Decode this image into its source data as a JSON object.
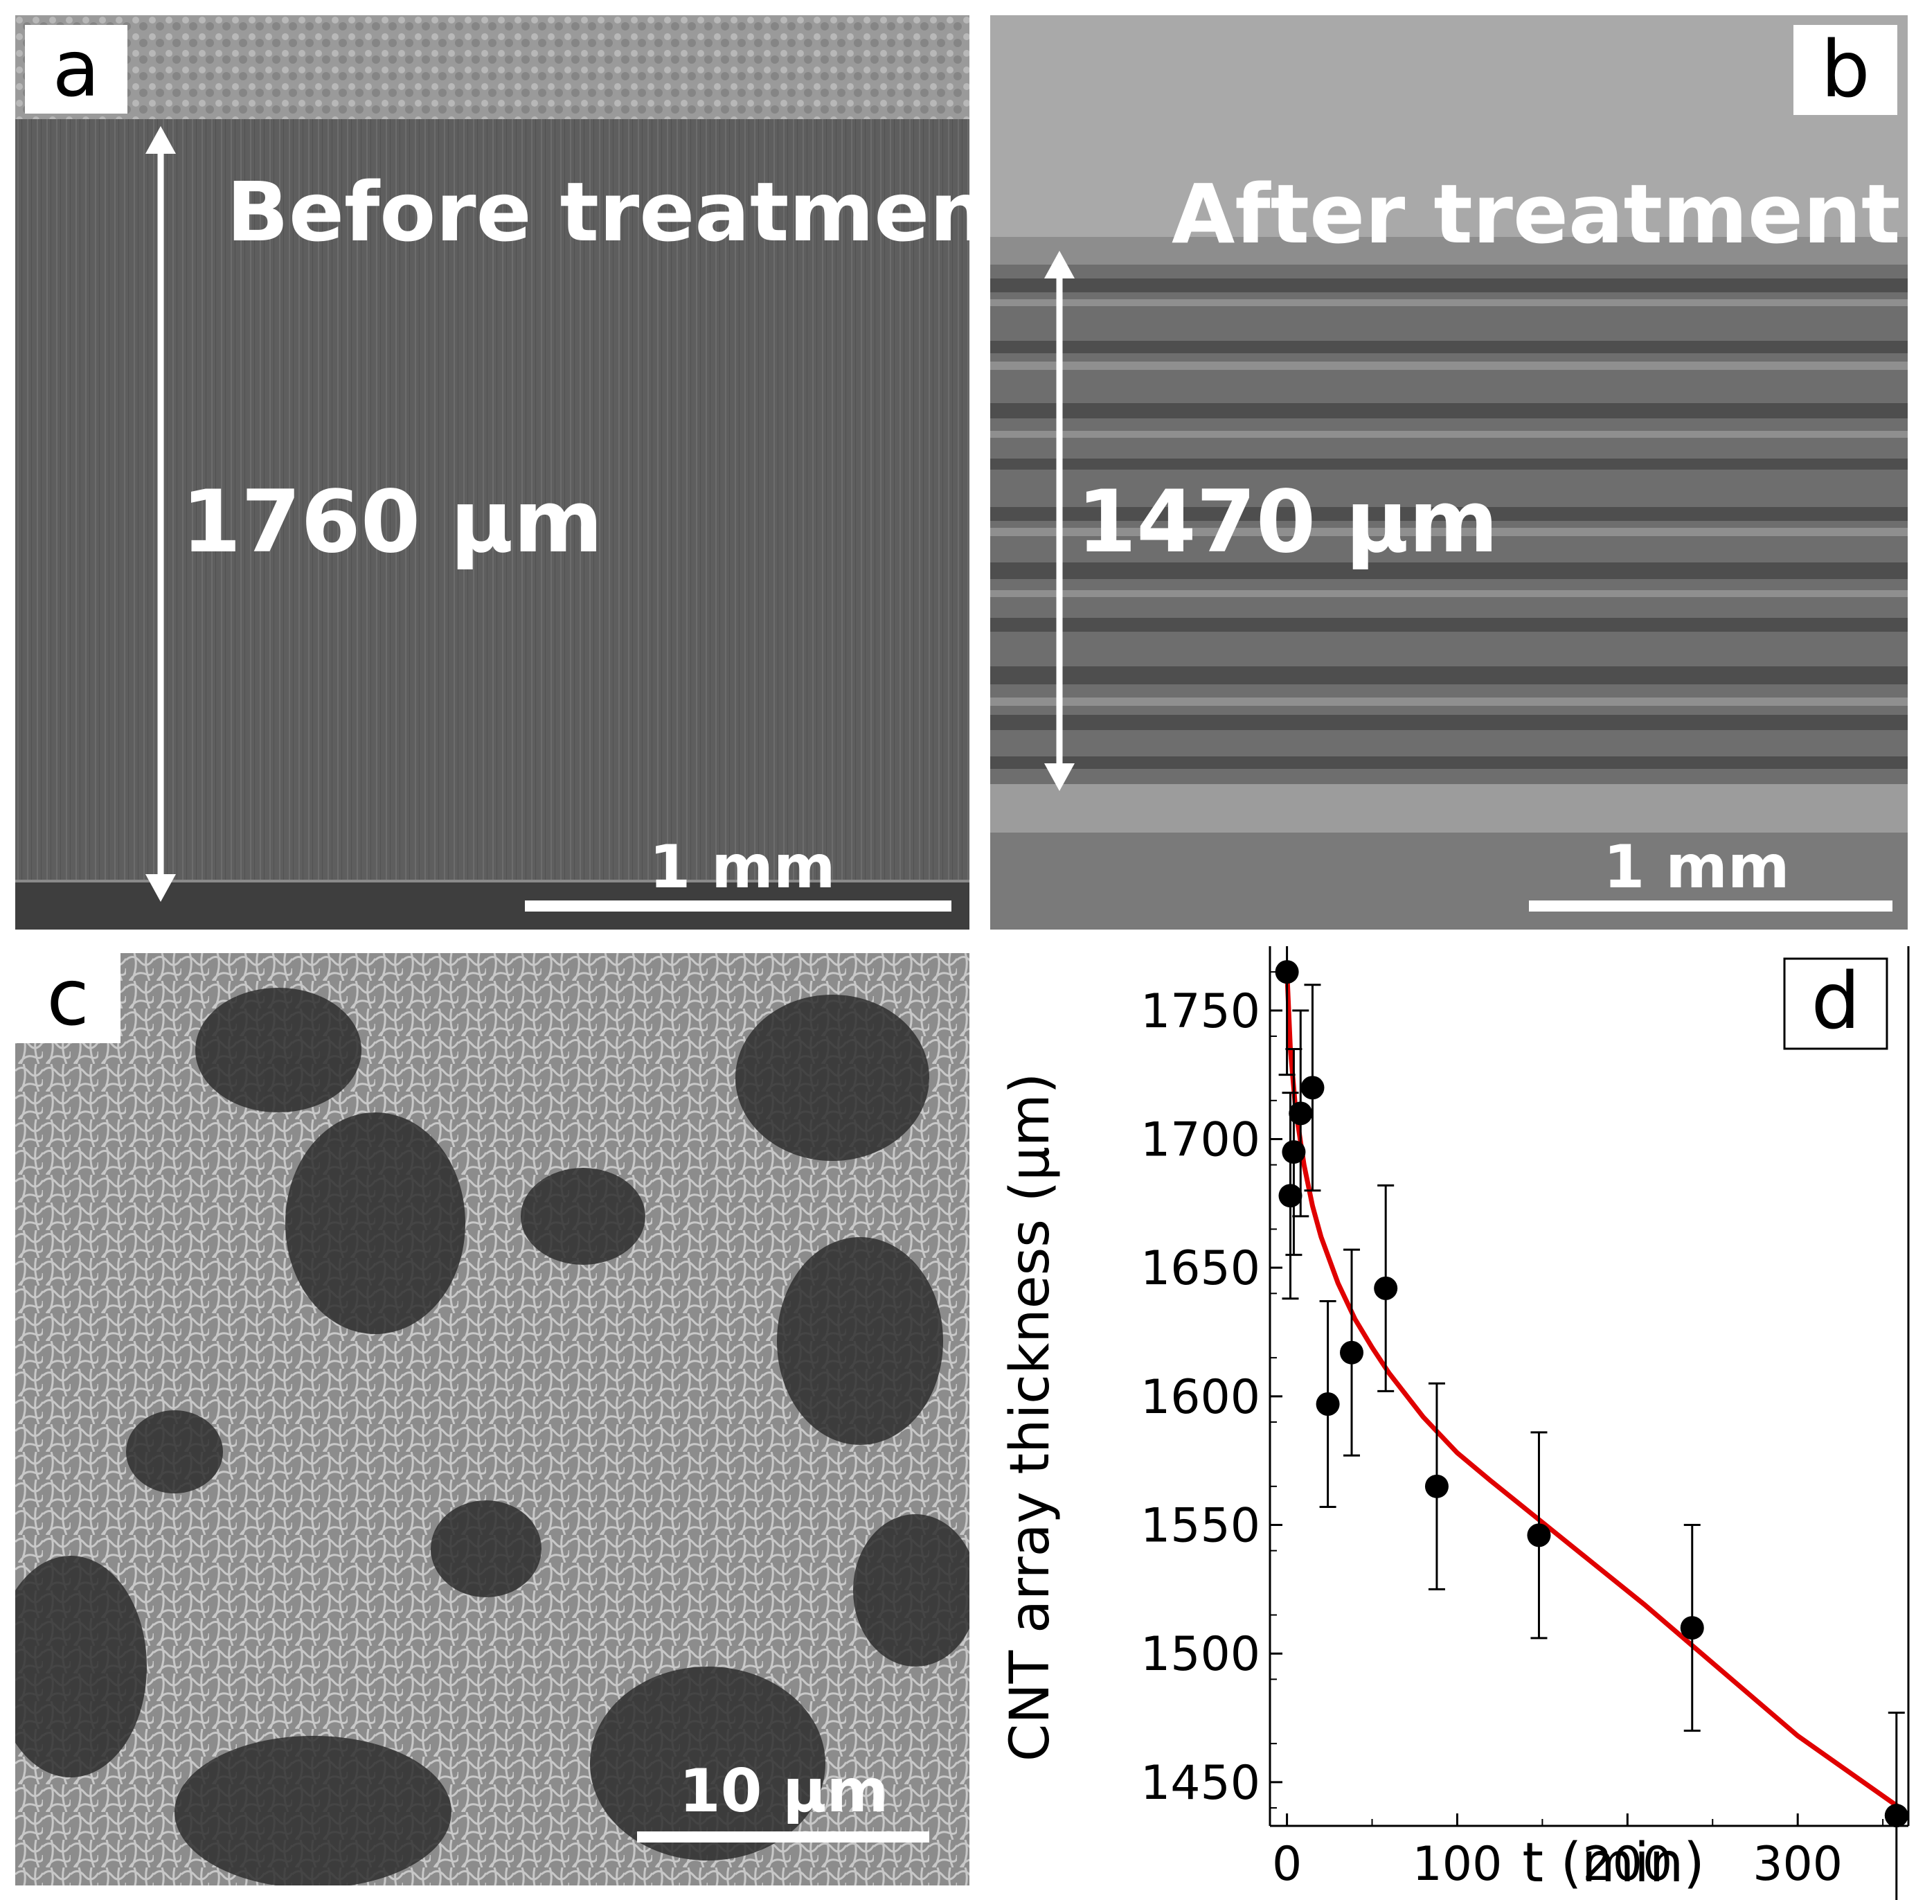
{
  "panels": {
    "a": {
      "letter": "a",
      "caption": "Before treatment",
      "measurement": "1760 µm",
      "scale_label": "1 mm"
    },
    "b": {
      "letter": "b",
      "caption": "After treatment",
      "measurement": "1470 µm",
      "scale_label": "1 mm"
    },
    "c": {
      "letter": "c",
      "scale_label": "10 µm"
    },
    "d": {
      "letter": "d"
    }
  },
  "chart_data": {
    "type": "scatter",
    "xlabel": "t (min)",
    "ylabel": "CNT array thickness (µm)",
    "xlim": [
      -10,
      365
    ],
    "ylim": [
      1433,
      1775
    ],
    "xticks": [
      0,
      100,
      200,
      300
    ],
    "yticks": [
      1450,
      1500,
      1550,
      1600,
      1650,
      1700,
      1750
    ],
    "points": [
      {
        "x": 0,
        "y": 1765,
        "err": 40
      },
      {
        "x": 2,
        "y": 1678,
        "err": 40
      },
      {
        "x": 4,
        "y": 1695,
        "err": 40
      },
      {
        "x": 8,
        "y": 1710,
        "err": 40
      },
      {
        "x": 15,
        "y": 1720,
        "err": 40
      },
      {
        "x": 24,
        "y": 1597,
        "err": 40
      },
      {
        "x": 38,
        "y": 1617,
        "err": 40
      },
      {
        "x": 58,
        "y": 1642,
        "err": 40
      },
      {
        "x": 88,
        "y": 1565,
        "err": 40
      },
      {
        "x": 148,
        "y": 1546,
        "err": 40
      },
      {
        "x": 238,
        "y": 1510,
        "err": 40
      },
      {
        "x": 358,
        "y": 1437,
        "err": 40
      }
    ],
    "fit": {
      "x": [
        0,
        2,
        5,
        10,
        15,
        20,
        30,
        40,
        50,
        60,
        80,
        100,
        120,
        150,
        180,
        210,
        240,
        270,
        300,
        330,
        360
      ],
      "y": [
        1765,
        1735,
        1712,
        1690,
        1674,
        1662,
        1644,
        1630,
        1619,
        1609,
        1592,
        1578,
        1567,
        1551,
        1535,
        1519,
        1502,
        1485,
        1468,
        1454,
        1440
      ]
    },
    "colors": {
      "points": "#000000",
      "fit": "#e00000"
    }
  }
}
